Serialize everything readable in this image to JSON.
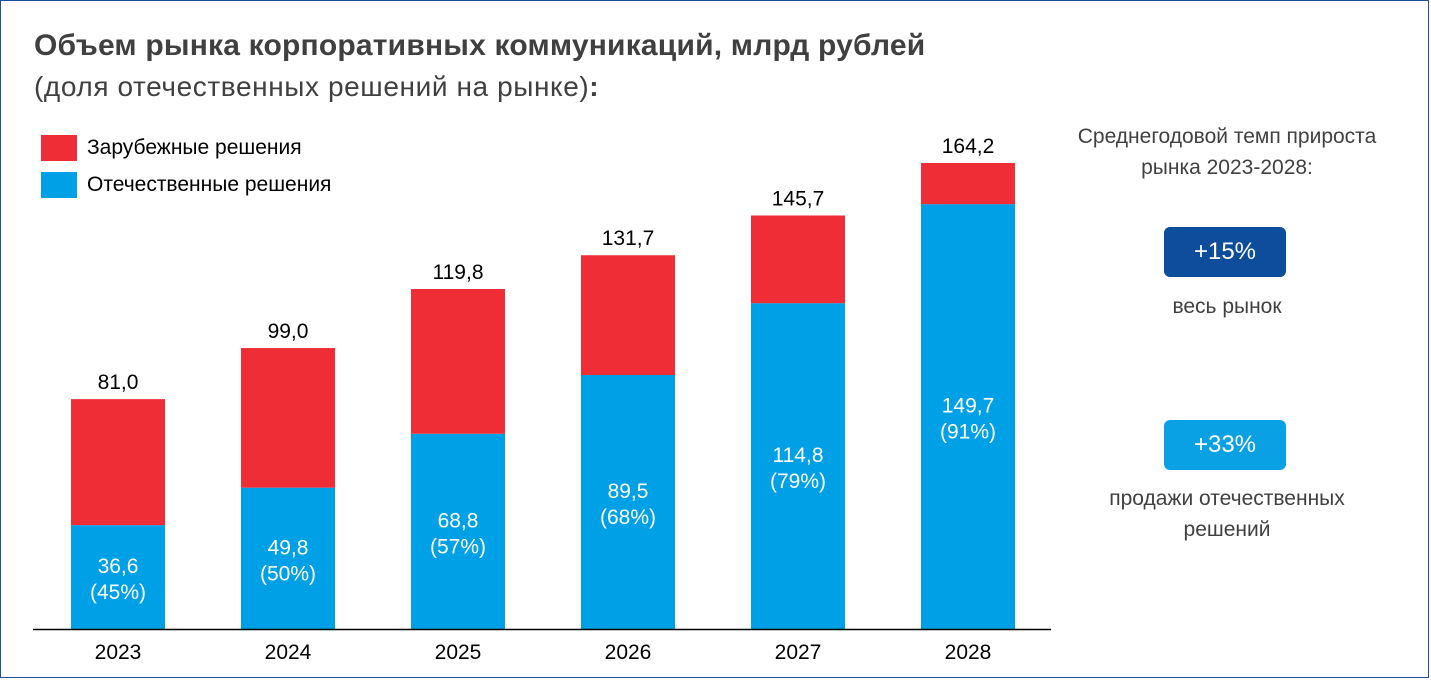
{
  "title": "Объем рынка корпоративных коммуникаций, млрд рублей",
  "subtitle": "(доля отечественных решений на рынке)",
  "subtitle_colon": ":",
  "colors": {
    "foreign": "#ee2d37",
    "domestic": "#00a0e6",
    "badge_market": "#0e4c9c",
    "badge_domestic": "#0aa1e4",
    "frame": "#1f4e9c"
  },
  "legend": [
    {
      "label": "Зарубежные решения",
      "color": "#ee2d37"
    },
    {
      "label": "Отечественные решения",
      "color": "#00a0e6"
    }
  ],
  "chart_data": {
    "type": "bar",
    "stacked": true,
    "categories": [
      "2023",
      "2024",
      "2025",
      "2026",
      "2027",
      "2028"
    ],
    "series": [
      {
        "name": "Отечественные решения",
        "values": [
          36.6,
          49.8,
          68.8,
          89.5,
          114.8,
          149.7
        ]
      },
      {
        "name": "Зарубежные решения",
        "values": [
          44.4,
          49.2,
          51.0,
          42.2,
          30.9,
          14.5
        ]
      }
    ],
    "totals": [
      81.0,
      99.0,
      119.8,
      131.7,
      145.7,
      164.2
    ],
    "total_labels": [
      "81,0",
      "99,0",
      "119,8",
      "131,7",
      "145,7",
      "164,2"
    ],
    "domestic_labels": [
      "36,6",
      "49,8",
      "68,8",
      "89,5",
      "114,8",
      "149,7"
    ],
    "domestic_share_labels": [
      "(45%)",
      "(50%)",
      "(57%)",
      "(68%)",
      "(79%)",
      "(91%)"
    ],
    "title": "Объем рынка корпоративных коммуникаций, млрд рублей",
    "xlabel": "",
    "ylabel": "",
    "ylim": [
      0,
      164.2
    ],
    "grid": false,
    "legend_position": "top-left"
  },
  "side_panel": {
    "title": "Среднегодовой темп прироста рынка 2023-2028:",
    "market_badge": "+15%",
    "market_caption": "весь рынок",
    "domestic_badge": "+33%",
    "domestic_caption_line1": "продажи отечественных",
    "domestic_caption_line2": "решений"
  }
}
